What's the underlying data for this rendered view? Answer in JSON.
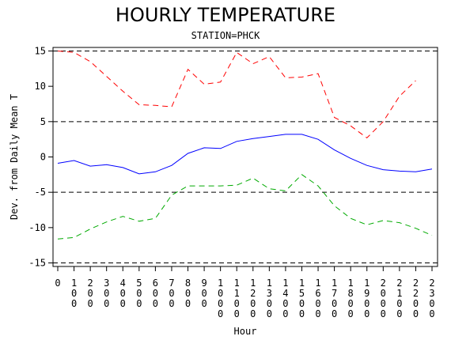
{
  "chart_data": {
    "type": "line",
    "title": "HOURLY TEMPERATURE",
    "subtitle": "STATION=PHCK",
    "xlabel": "Hour",
    "ylabel": "Dev. from Daily Mean T",
    "x": [
      "0",
      "100",
      "200",
      "300",
      "400",
      "500",
      "600",
      "700",
      "800",
      "900",
      "1000",
      "1100",
      "1200",
      "1300",
      "1400",
      "1500",
      "1600",
      "1700",
      "1800",
      "1900",
      "2000",
      "2100",
      "2200",
      "2300"
    ],
    "yticks": [
      -15,
      -10,
      -5,
      0,
      5,
      10,
      15
    ],
    "ylim": [
      -15.5,
      15.5
    ],
    "reference_lines": [
      -15,
      -5,
      5,
      15
    ],
    "grid": false,
    "series": [
      {
        "color": "#0000ff",
        "dash": "solid",
        "values": [
          -0.9,
          -0.5,
          -1.3,
          -1.1,
          -1.5,
          -2.4,
          -2.1,
          -1.2,
          0.5,
          1.3,
          1.2,
          2.2,
          2.6,
          2.9,
          3.2,
          3.2,
          2.5,
          1.0,
          -0.2,
          -1.2,
          -1.8,
          -2.0,
          -2.1,
          -1.7
        ]
      },
      {
        "color": "#ff0000",
        "dash": "dashed",
        "values": [
          15.0,
          14.8,
          13.5,
          11.4,
          9.3,
          7.4,
          7.3,
          7.1,
          12.4,
          10.3,
          10.6,
          14.8,
          13.2,
          14.2,
          11.2,
          11.3,
          11.8,
          5.6,
          4.4,
          2.7,
          5.0,
          8.6,
          10.8,
          null
        ]
      },
      {
        "color": "#00aa00",
        "dash": "dashed",
        "values": [
          -11.6,
          -11.4,
          -10.2,
          -9.2,
          -8.4,
          -9.1,
          -8.7,
          -5.4,
          -4.1,
          -4.1,
          -4.1,
          -4.0,
          -3.0,
          -4.5,
          -4.8,
          -2.5,
          -4.1,
          -6.9,
          -8.7,
          -9.6,
          -9.0,
          -9.3,
          -10.1,
          -11.1
        ]
      }
    ]
  }
}
